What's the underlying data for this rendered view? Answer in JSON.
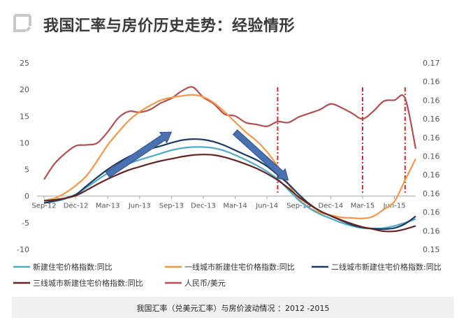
{
  "title": "我国汇率与房价历史走势：经验情形",
  "caption": "我国汇率（兑美元汇率）与房价波动情况 ：2012 -2015",
  "chart_data": {
    "type": "line",
    "x": [
      "Sep-12",
      "Oct-12",
      "Nov-12",
      "Dec-12",
      "Jan-13",
      "Feb-13",
      "Mar-13",
      "Apr-13",
      "May-13",
      "Jun-13",
      "Jul-13",
      "Aug-13",
      "Sep-13",
      "Oct-13",
      "Nov-13",
      "Dec-13",
      "Jan-14",
      "Feb-14",
      "Mar-14",
      "Apr-14",
      "May-14",
      "Jun-14",
      "Jul-14",
      "Aug-14",
      "Sep-14",
      "Oct-14",
      "Nov-14",
      "Dec-14",
      "Jan-15",
      "Feb-15",
      "Mar-15",
      "Apr-15",
      "May-15",
      "Jun-15",
      "Jul-15",
      "Aug-15"
    ],
    "x_tick_labels": [
      "Sep-12",
      "Dec-12",
      "Mar-13",
      "Jun-13",
      "Sep-13",
      "Dec-13",
      "Mar-14",
      "Jun-14",
      "Sep-14",
      "Dec-14",
      "Mar-15",
      "Jun-15"
    ],
    "ylim_left": [
      -10,
      25
    ],
    "yticks_left": [
      "25",
      "20",
      "15",
      "10",
      "5",
      "0",
      "-5",
      "-10"
    ],
    "ylim_right": [
      0.15,
      0.17
    ],
    "yticks_right": [
      "0.17",
      "0.16",
      "0.16",
      "0.16",
      "0.16",
      "0.16",
      "0.16",
      "0.16",
      "0.16",
      "0.16",
      "0.15"
    ],
    "series": [
      {
        "name": "新建住宅价格指数:同比",
        "color": "#4bacc6",
        "axis": "left",
        "values": [
          -1.3,
          -1.0,
          -0.5,
          0.3,
          1.6,
          3.0,
          4.3,
          5.3,
          6.1,
          6.8,
          7.4,
          8.0,
          8.6,
          9.0,
          9.2,
          9.2,
          9.0,
          8.5,
          7.7,
          6.8,
          5.8,
          4.6,
          3.2,
          1.2,
          -0.8,
          -2.3,
          -3.4,
          -4.2,
          -5.0,
          -5.6,
          -6.0,
          -6.1,
          -6.0,
          -5.6,
          -5.0,
          -4.3
        ]
      },
      {
        "name": "一线城市新建住宅价格指数:同比",
        "color": "#f79646",
        "axis": "left",
        "values": [
          -0.8,
          -0.4,
          0.6,
          2.0,
          3.8,
          6.6,
          9.6,
          12.0,
          14.2,
          15.8,
          17.0,
          18.0,
          18.5,
          18.8,
          19.0,
          18.6,
          17.5,
          15.8,
          13.9,
          12.0,
          10.4,
          8.3,
          5.6,
          2.3,
          -0.6,
          -2.2,
          -3.1,
          -3.6,
          -4.0,
          -4.1,
          -4.2,
          -3.8,
          -2.5,
          -1.0,
          3.0,
          7.0
        ]
      },
      {
        "name": "二线城市新建住宅价格指数:同比",
        "color": "#1f3864",
        "axis": "left",
        "values": [
          -1.3,
          -0.9,
          -0.4,
          0.3,
          1.9,
          3.5,
          5.0,
          6.3,
          7.4,
          8.3,
          8.9,
          9.4,
          10.0,
          10.5,
          10.7,
          10.6,
          10.2,
          9.5,
          8.6,
          7.7,
          6.8,
          5.6,
          4.0,
          2.3,
          0.3,
          -1.5,
          -2.8,
          -3.7,
          -4.6,
          -5.4,
          -5.9,
          -6.1,
          -6.2,
          -6.0,
          -5.2,
          -3.8
        ]
      },
      {
        "name": "三线城市新建住宅价格指数:同比",
        "color": "#632523",
        "axis": "left",
        "values": [
          -0.9,
          -0.7,
          -0.4,
          0.1,
          1.1,
          2.2,
          3.2,
          4.1,
          4.9,
          5.5,
          6.1,
          6.6,
          7.0,
          7.4,
          7.7,
          7.8,
          7.7,
          7.3,
          6.7,
          6.0,
          5.2,
          4.2,
          3.0,
          1.5,
          -0.2,
          -1.6,
          -2.8,
          -3.7,
          -4.5,
          -5.2,
          -5.8,
          -6.2,
          -6.6,
          -6.6,
          -6.2,
          -5.6
        ]
      },
      {
        "name": "人民币/美元",
        "color": "#b34f4f",
        "axis": "right",
        "values": [
          0.1575,
          0.1592,
          0.1603,
          0.1611,
          0.1612,
          0.1614,
          0.1626,
          0.1641,
          0.1648,
          0.1647,
          0.165,
          0.1657,
          0.1662,
          0.167,
          0.1674,
          0.1663,
          0.1656,
          0.1645,
          0.1643,
          0.1636,
          0.1634,
          0.1632,
          0.1637,
          0.1636,
          0.1642,
          0.1646,
          0.165,
          0.1656,
          0.1652,
          0.1646,
          0.164,
          0.1648,
          0.1659,
          0.166,
          0.1662,
          0.1608
        ]
      }
    ],
    "arrows": [
      {
        "from": [
          "Mar-13",
          4
        ],
        "to": [
          "Sep-13",
          12
        ],
        "direction": "up",
        "color": "#4a72b0"
      },
      {
        "from": [
          "Mar-14",
          12
        ],
        "to": [
          "Aug-14",
          3
        ],
        "direction": "down",
        "color": "#4a72b0"
      }
    ],
    "vertical_markers": [
      "Jul-14",
      "Mar-15",
      "Jul-15"
    ],
    "grid": false,
    "legend_position": "bottom"
  }
}
